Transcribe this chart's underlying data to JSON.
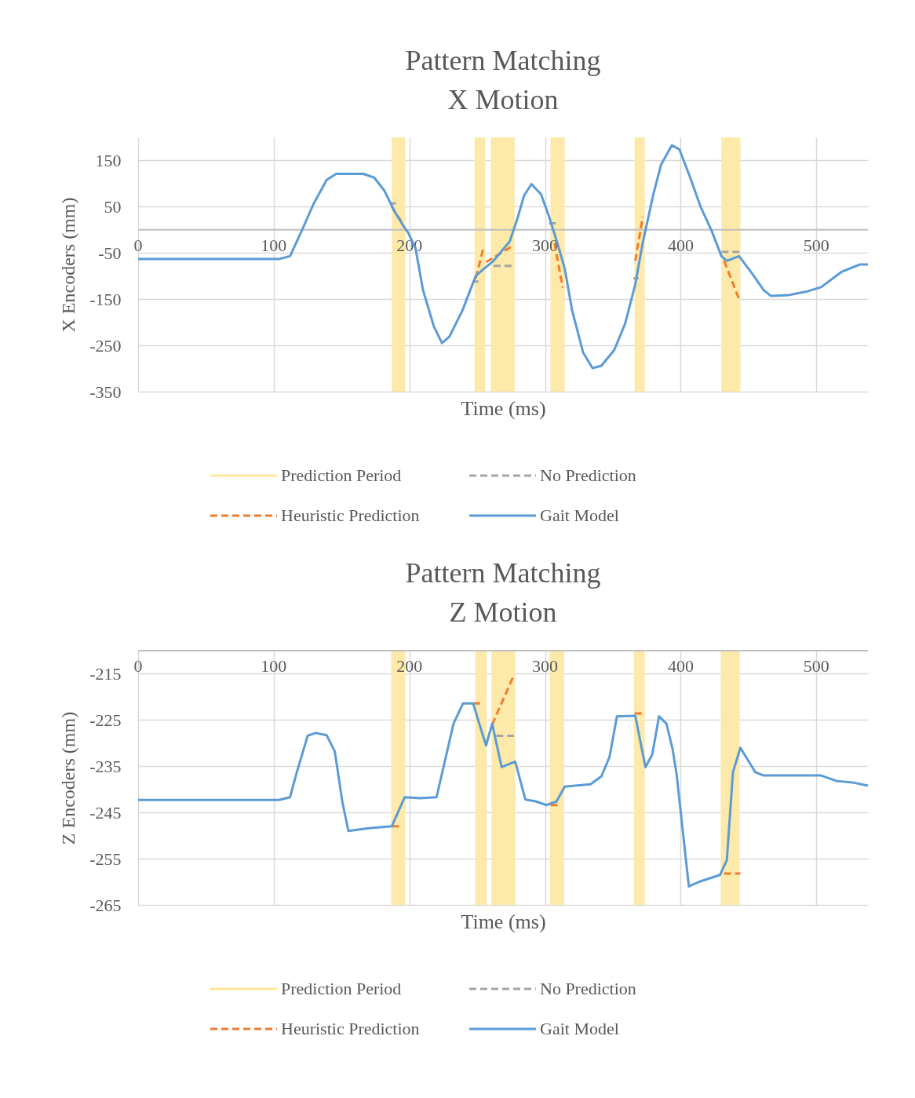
{
  "chart_data": [
    {
      "type": "line",
      "title": "Pattern Matching\nX Motion",
      "xlabel": "Time (ms)",
      "ylabel": "X Encoders (mm)",
      "xlim": [
        0,
        538
      ],
      "xticks": [
        0,
        100,
        200,
        300,
        400,
        500
      ],
      "ylim": [
        -350,
        200
      ],
      "yticks": [
        -350,
        -250,
        -150,
        -50,
        50,
        150
      ],
      "grid": true,
      "legend": "bottom",
      "bands": [
        {
          "axis": "x",
          "from": 187,
          "to": 197,
          "label": "Prediction Period",
          "color": "#fde9a9"
        },
        {
          "axis": "x",
          "from": 248,
          "to": 256,
          "color": "#fde9a9"
        },
        {
          "axis": "x",
          "from": 260,
          "to": 277.5,
          "color": "#fde9a9"
        },
        {
          "axis": "x",
          "from": 304,
          "to": 314.5,
          "color": "#fde9a9"
        },
        {
          "axis": "x",
          "from": 366,
          "to": 373.5,
          "color": "#fde9a9"
        },
        {
          "axis": "x",
          "from": 430,
          "to": 444,
          "color": "#fde9a9"
        }
      ],
      "series": [
        {
          "name": "No Prediction",
          "line_style": "dashed",
          "color": "#a5a5a5",
          "x": [
            186,
            190,
            null,
            248,
            251,
            null,
            262,
            277,
            null,
            303,
            308,
            null,
            365,
            369,
            null,
            430,
            444
          ],
          "values": [
            57,
            57,
            null,
            -112,
            -112,
            null,
            -78,
            -78,
            null,
            14,
            14,
            null,
            -105,
            -105,
            null,
            -48,
            -48
          ]
        },
        {
          "name": "Heuristic Prediction",
          "line_style": "dashed",
          "color": "#ed7d31",
          "x": [
            187,
            194,
            null,
            249,
            254.5,
            null,
            256.5,
            277,
            null,
            307,
            313,
            null,
            366.5,
            372,
            null,
            432,
            443
          ],
          "values": [
            50,
            18,
            null,
            -104,
            -40,
            null,
            -70,
            -33,
            null,
            -29,
            -125,
            null,
            -67,
            28,
            null,
            -67,
            -150
          ]
        },
        {
          "name": "Gait Model",
          "line_style": "solid",
          "color": "#5b9bd5",
          "x": [
            0,
            104,
            112,
            120,
            129.5,
            139,
            146,
            166,
            174,
            181.5,
            189,
            195,
            199,
            204.5,
            210,
            218,
            224,
            229.5,
            239,
            249,
            255,
            262,
            274,
            280,
            284.5,
            290,
            297,
            303,
            309,
            314.5,
            320,
            328,
            335,
            341.5,
            351,
            359,
            366.5,
            372,
            380,
            385.5,
            393.5,
            399,
            407,
            414.5,
            422.5,
            430,
            434,
            443,
            453,
            461,
            466.5,
            480,
            493.5,
            503.5,
            518.5,
            532,
            538
          ],
          "values": [
            -63,
            -63,
            -57,
            -6,
            57,
            108,
            121,
            121,
            113,
            85,
            40,
            11,
            -6,
            -40,
            -130,
            -209,
            -245,
            -231,
            -175,
            -99,
            -84,
            -67,
            -25,
            28,
            74,
            99,
            77,
            28,
            -28,
            -84,
            -175,
            -265,
            -299,
            -294,
            -260,
            -203,
            -118,
            -28,
            79,
            141,
            183,
            174,
            113,
            51,
            0,
            -57,
            -67,
            -57,
            -96,
            -130,
            -143,
            -141,
            -133,
            -124,
            -91,
            -75,
            -75
          ]
        }
      ]
    },
    {
      "type": "line",
      "title": "Pattern Matching\nZ Motion",
      "xlabel": "Time (ms)",
      "ylabel": "Z Encoders (mm)",
      "xlim": [
        0,
        538
      ],
      "xticks": [
        0,
        100,
        200,
        300,
        400,
        500
      ],
      "ylim": [
        -265,
        -210
      ],
      "yticks": [
        -265,
        -255,
        -245,
        -235,
        -225,
        -215
      ],
      "grid": true,
      "legend": "bottom",
      "bands": [
        {
          "axis": "x",
          "from": 186.5,
          "to": 197,
          "label": "Prediction Period",
          "color": "#fde9a9"
        },
        {
          "axis": "x",
          "from": 248.5,
          "to": 257,
          "color": "#fde9a9"
        },
        {
          "axis": "x",
          "from": 260.5,
          "to": 278,
          "color": "#fde9a9"
        },
        {
          "axis": "x",
          "from": 303.5,
          "to": 314,
          "color": "#fde9a9"
        },
        {
          "axis": "x",
          "from": 365.5,
          "to": 373.5,
          "color": "#fde9a9"
        },
        {
          "axis": "x",
          "from": 429.5,
          "to": 443.5,
          "color": "#fde9a9"
        }
      ],
      "series": [
        {
          "name": "No Prediction",
          "line_style": "dashed",
          "color": "#a5a5a5",
          "x": [
            264,
            277
          ],
          "values": [
            -228.4,
            -228.4
          ]
        },
        {
          "name": "Heuristic Prediction",
          "line_style": "dashed",
          "color": "#ed7d31",
          "x": [
            187,
            193,
            null,
            247,
            252,
            null,
            261,
            277,
            null,
            304,
            311,
            null,
            366,
            372,
            null,
            432,
            444
          ],
          "values": [
            -248,
            -248,
            null,
            -221.4,
            -221.4,
            null,
            -226,
            -215.3,
            null,
            -243.4,
            -243.4,
            null,
            -223.6,
            -223.6,
            null,
            -258.2,
            -258.2
          ]
        },
        {
          "name": "Gait Model",
          "line_style": "solid",
          "color": "#5b9bd5",
          "x": [
            0,
            104,
            112,
            117,
            125,
            131,
            139,
            145,
            150.5,
            155,
            170,
            187,
            196.5,
            208,
            220,
            225.5,
            232.5,
            239.5,
            247,
            251.5,
            256.5,
            261,
            268,
            278,
            285.5,
            293,
            301,
            308.5,
            314.5,
            333.5,
            341.5,
            347.5,
            353,
            366.5,
            374,
            379,
            384,
            389.5,
            394,
            397,
            401,
            406,
            414.5,
            429,
            434,
            438.5,
            444,
            455,
            461,
            503.5,
            515,
            526.5,
            538
          ],
          "values": [
            -242.3,
            -242.3,
            -241.7,
            -236.3,
            -228.4,
            -227.8,
            -228.3,
            -231.8,
            -242.6,
            -249,
            -248.4,
            -248,
            -241.7,
            -241.9,
            -241.7,
            -234.7,
            -225.8,
            -221.4,
            -221.4,
            -225.8,
            -230.5,
            -225.8,
            -235.2,
            -234,
            -242.2,
            -242.6,
            -243.4,
            -242.6,
            -239.4,
            -238.9,
            -237.2,
            -233,
            -224.2,
            -224.1,
            -235.2,
            -232.5,
            -224.2,
            -225.8,
            -231.3,
            -236.8,
            -247.6,
            -261,
            -259.9,
            -258.5,
            -255.3,
            -236.3,
            -231,
            -236.3,
            -237,
            -237,
            -238.2,
            -238.5,
            -239.2
          ]
        }
      ]
    }
  ]
}
